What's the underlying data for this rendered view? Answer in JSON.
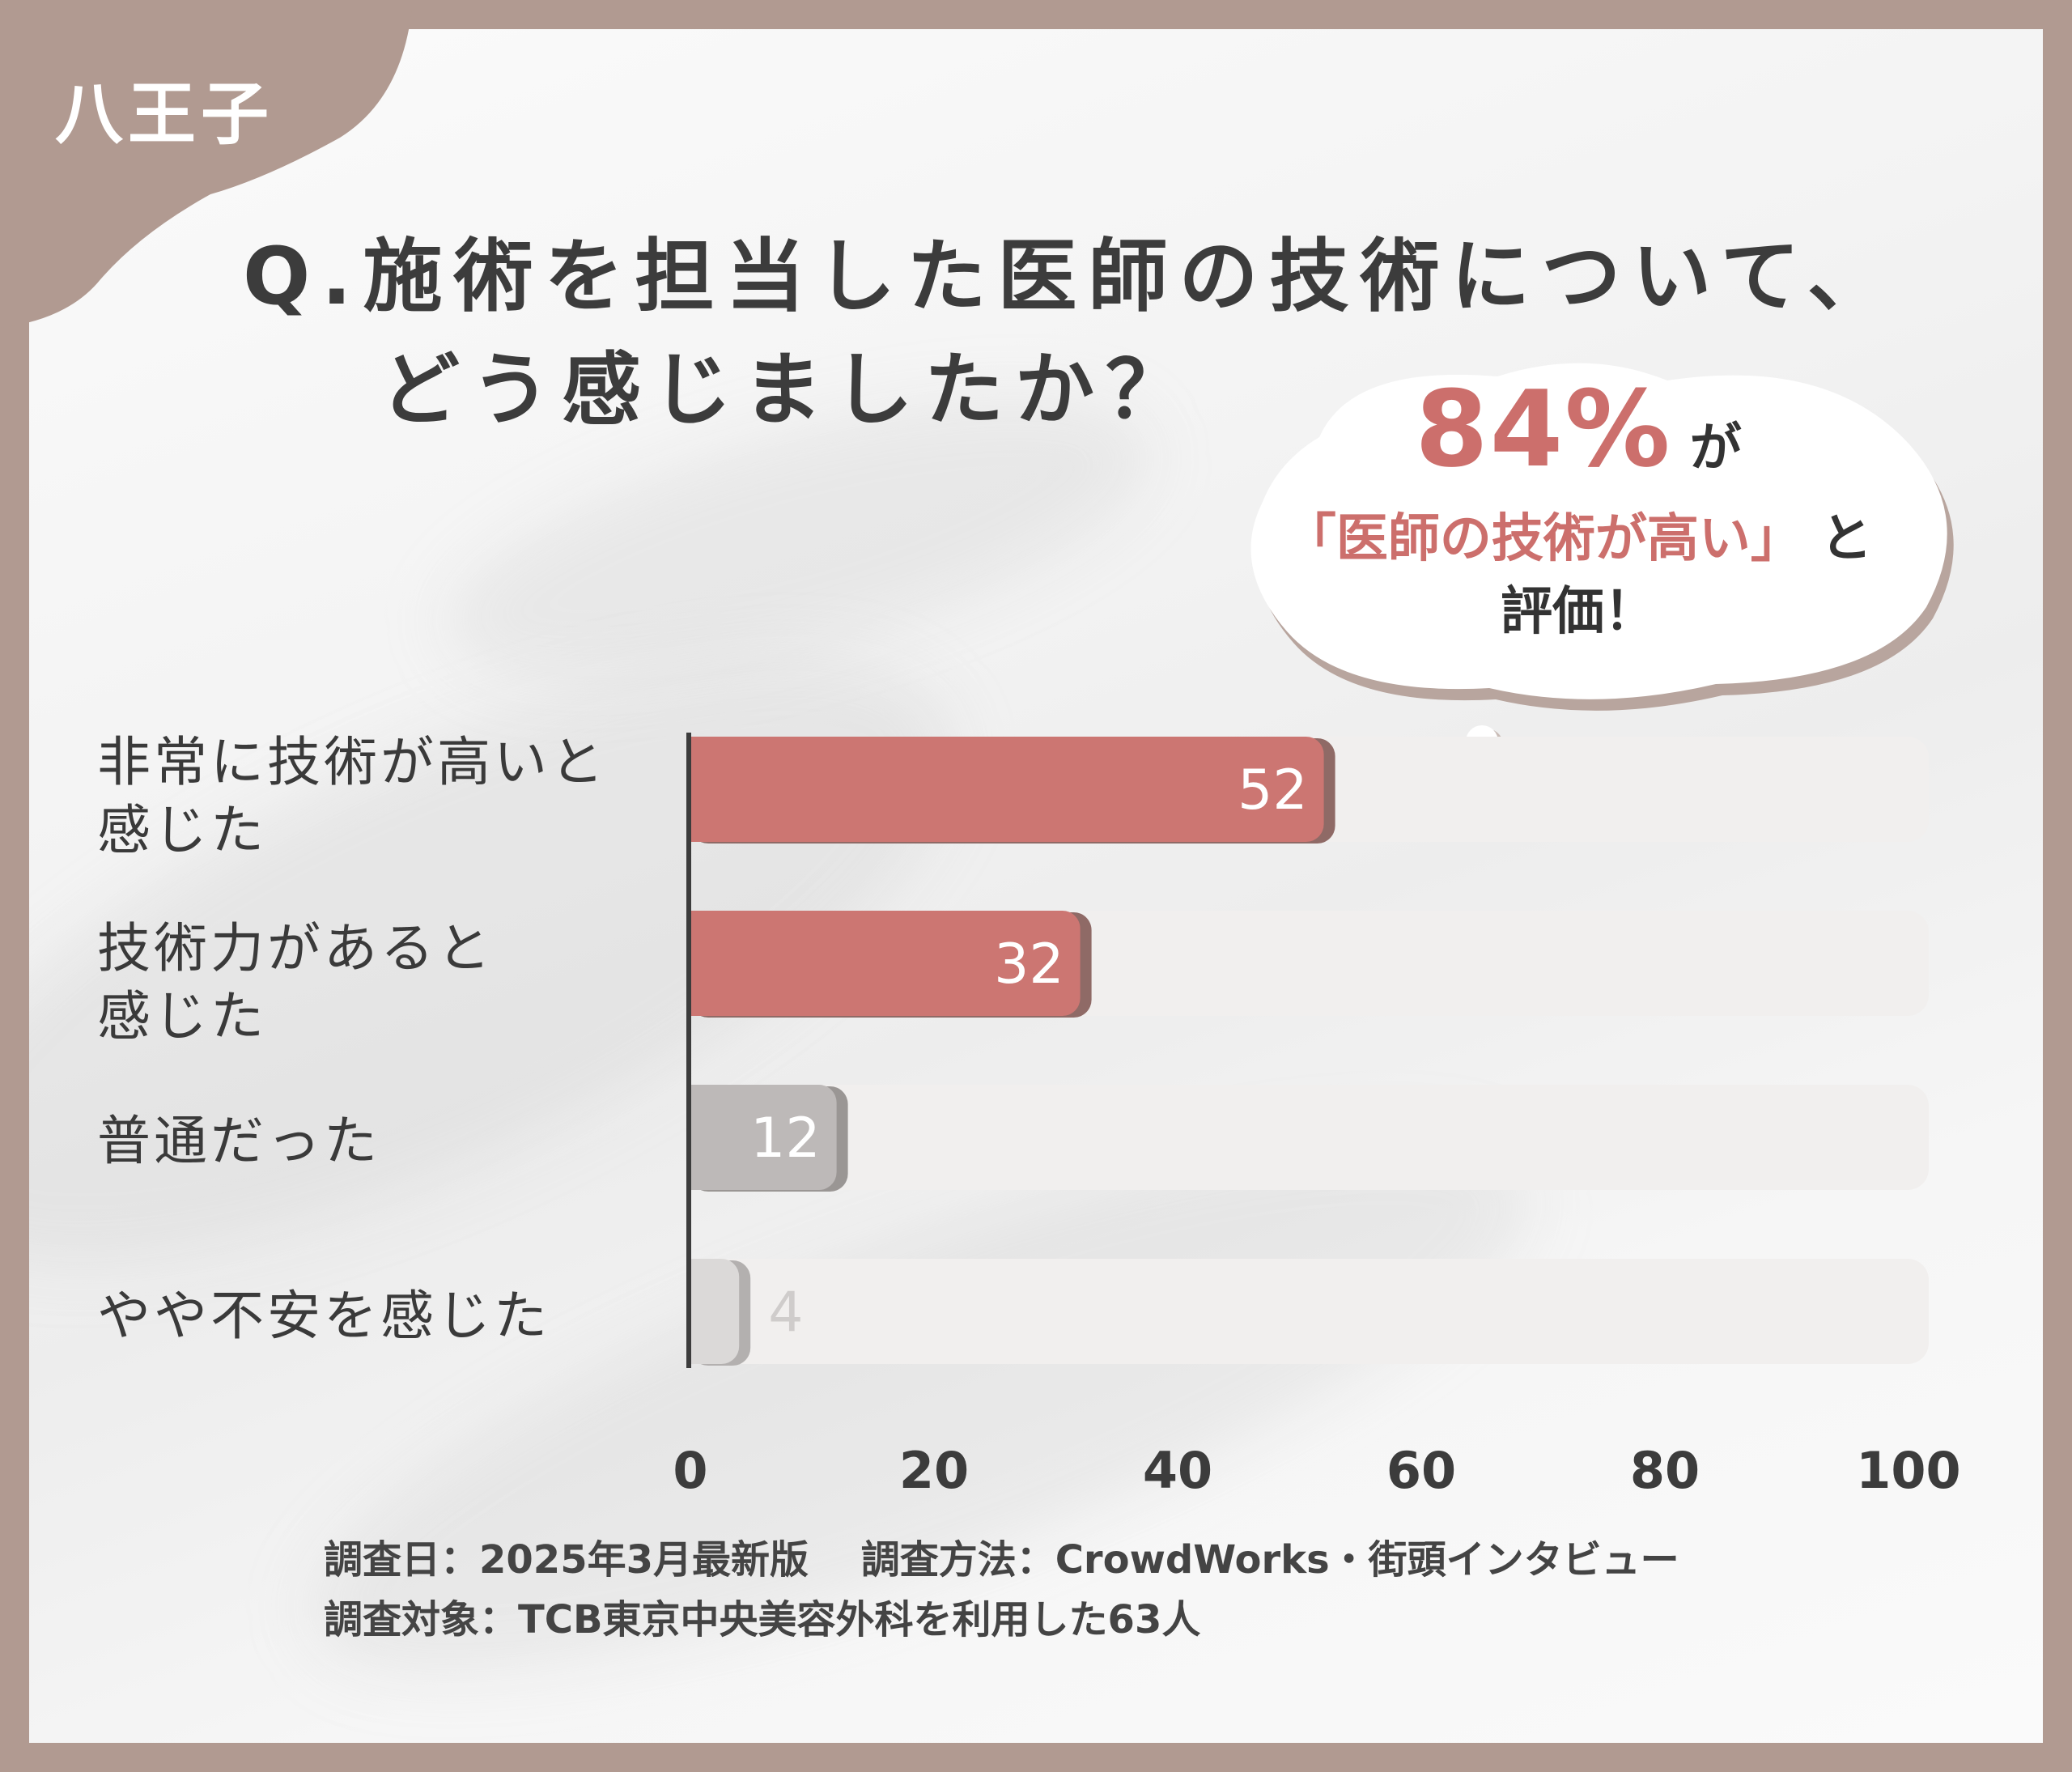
{
  "badge": {
    "area": "八王子"
  },
  "question": {
    "line1": "Q.施術を担当した医師の技術について、",
    "line2": "どう感じましたか？"
  },
  "callout": {
    "percent": "84%",
    "ga": "が",
    "quote": "「医師の技術が高い」",
    "to": "と",
    "hyoka": "評価！"
  },
  "categories": [
    {
      "line1": "非常に技術が高いと",
      "line2": "感じた"
    },
    {
      "line1": "技術力があると",
      "line2": "感じた"
    },
    {
      "line1": "普通だった",
      "line2": ""
    },
    {
      "line1": "やや不安を感じた",
      "line2": ""
    }
  ],
  "footer": {
    "line1": "調査日：2025年3月最新版　 調査方法：CrowdWorks・街頭インタビュー",
    "line2": "調査対象：TCB東京中央美容外科を利用した63人"
  },
  "colors": {
    "frame": "#b19a91",
    "highlight_bar": "#cc7672",
    "neutral_bar": "#bdb9b8",
    "light_bar": "#dbd9d8",
    "track": "#f1efee",
    "accent_text": "#cc6f6c"
  },
  "chart_data": {
    "type": "bar",
    "orientation": "horizontal",
    "categories": [
      "非常に技術が高いと感じた",
      "技術力があると感じた",
      "普通だった",
      "やや不安を感じた"
    ],
    "values": [
      52,
      32,
      12,
      4
    ],
    "xlim": [
      0,
      100
    ],
    "ticks": [
      0,
      20,
      40,
      60,
      80,
      100
    ],
    "bar_styles": [
      "highlight",
      "highlight",
      "neutral",
      "light"
    ],
    "grid": false,
    "legend": "none"
  }
}
